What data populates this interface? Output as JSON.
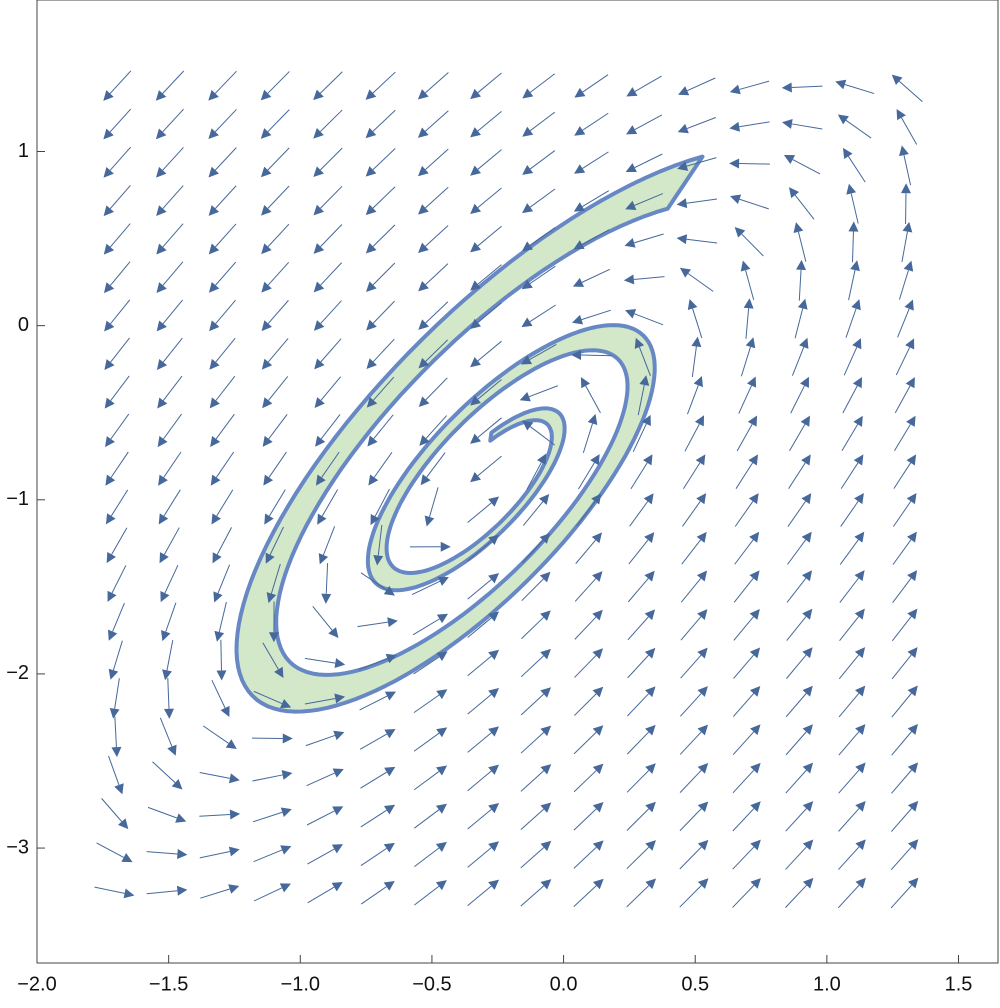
{
  "chart_data": {
    "type": "stream",
    "xlim": [
      -2.0,
      1.65
    ],
    "ylim": [
      -3.66,
      1.87
    ],
    "xticks": [
      {
        "value": -2.0,
        "label": "−2.0"
      },
      {
        "value": -1.5,
        "label": "−1.5"
      },
      {
        "value": -1.0,
        "label": "−1.0"
      },
      {
        "value": -0.5,
        "label": "−0.5"
      },
      {
        "value": 0,
        "label": "0.0"
      },
      {
        "value": 0.5,
        "label": "0.5"
      },
      {
        "value": 1.0,
        "label": "1.0"
      },
      {
        "value": 1.5,
        "label": "1.5"
      }
    ],
    "yticks": [
      {
        "value": -3,
        "label": "−3"
      },
      {
        "value": -2,
        "label": "−2"
      },
      {
        "value": -1,
        "label": "−1"
      },
      0,
      1
    ],
    "stream_color": "#46689a",
    "region_fill": "#d2e8c9",
    "region_stroke": "#6788c4"
  }
}
